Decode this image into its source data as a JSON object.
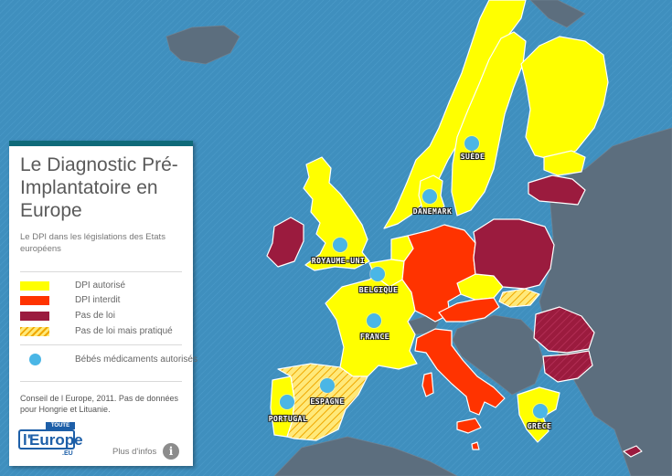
{
  "panel": {
    "title": "Le Diagnostic Pré-Implantatoire en Europe",
    "subtitle": "Le DPI dans les législations des Etats européens",
    "legend": [
      {
        "key": "authorized",
        "label": "DPI autorisé",
        "color": "#ffff00"
      },
      {
        "key": "forbidden",
        "label": "DPI interdit",
        "color": "#ff3300"
      },
      {
        "key": "no_law",
        "label": "Pas de loi",
        "color": "#9b1b3e"
      },
      {
        "key": "no_law_practiced",
        "label": "Pas de loi mais pratiqué",
        "color": "#ffdd33"
      }
    ],
    "babies_label": "Bébés médicaments autorisés",
    "source_note": "Conseil de l Europe, 2011. Pas de données pour Hongrie et Lituanie.",
    "more_info": "Plus d'infos",
    "info_glyph": "i"
  },
  "logo": {
    "toute": "TOUTE",
    "l": "l'",
    "europe": "Europe",
    "eu": ".EU"
  },
  "colors": {
    "sea": "#3f8fbe",
    "context_land": "#5c6e7e",
    "dot": "#4ab6e6",
    "header_bar": "#0f6a79"
  },
  "map_labels": {
    "suede": "SUÈDE",
    "danemark": "DANEMARK",
    "royaume_uni": "ROYAUME-UNI",
    "belgique": "BELGIQUE",
    "france": "FRANCE",
    "espagne": "ESPAGNE",
    "portugal": "PORTUGAL",
    "grece": "GRÈCE"
  }
}
